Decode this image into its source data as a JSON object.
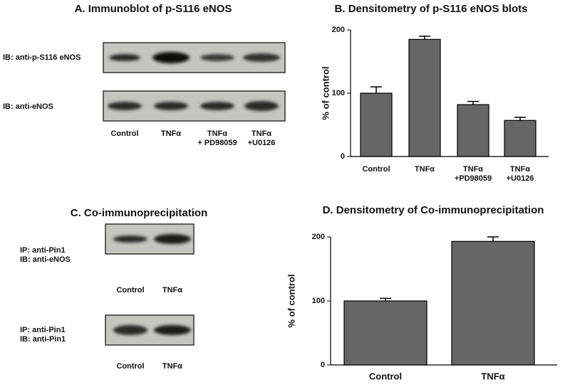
{
  "chart_data": [
    {
      "type": "bar",
      "title": "B. Densitometry of p-S116 eNOS blots",
      "ylabel": "% of control",
      "categories": [
        "Control",
        "TNFα",
        "TNFα\n+PD98059",
        "TNFα\n+U0126"
      ],
      "values": [
        100,
        185,
        82,
        57
      ],
      "errors": [
        10,
        5,
        5,
        5
      ],
      "color": "#666666",
      "ylim": [
        0,
        200
      ],
      "yticks": [
        0,
        100,
        200
      ]
    },
    {
      "type": "bar",
      "title": "D. Densitometry of Co-immunoprecipitation",
      "ylabel": "% of control",
      "categories": [
        "Control",
        "TNFα"
      ],
      "values": [
        100,
        193
      ],
      "errors": [
        4,
        7
      ],
      "color": "#666666",
      "ylim": [
        0,
        200
      ],
      "yticks": [
        0,
        100,
        200
      ]
    }
  ],
  "panel_a": {
    "title": "A. Immunoblot of p-S116 eNOS",
    "blots": [
      {
        "label": "IB: anti-p-S116 eNOS"
      },
      {
        "label": "IB: anti-eNOS"
      }
    ],
    "lanes": [
      "Control",
      "TNFα",
      "TNFα\n+ PD98059",
      "TNFα\n+U0126"
    ]
  },
  "panel_c": {
    "title": "C. Co-immunoprecipitation",
    "blots": [
      {
        "label": "IP: anti-Pin1\nIB: anti-eNOS",
        "lanes": [
          "Control",
          "TNFα"
        ]
      },
      {
        "label": "IP: anti-Pin1\nIB: anti-Pin1",
        "lanes": [
          "Control",
          "TNFα"
        ]
      }
    ]
  }
}
